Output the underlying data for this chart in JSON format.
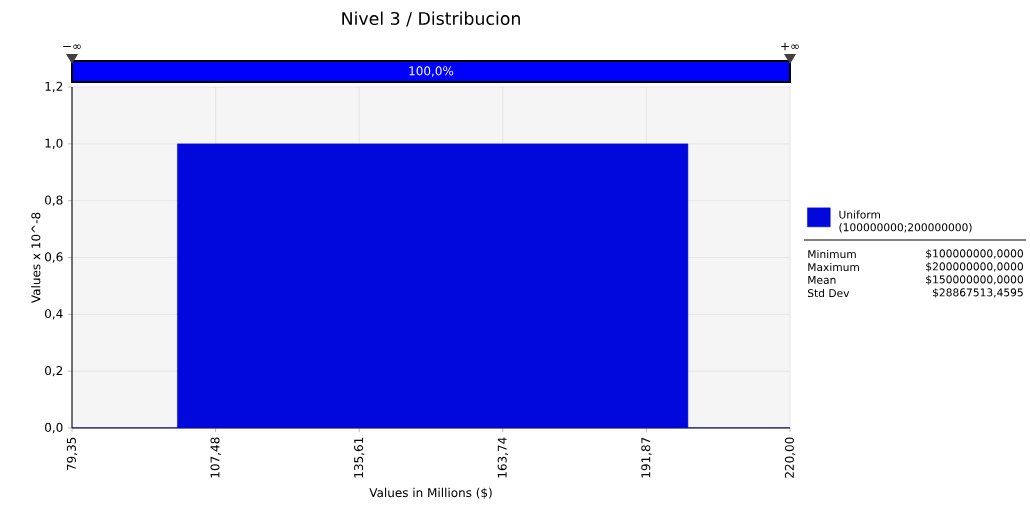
{
  "chart_data": {
    "type": "histogram",
    "title": "Nivel 3 / Distribucion",
    "xlabel": "Values in Millions ($)",
    "ylabel": "Values x 10^-8",
    "bins": [
      79.35,
      100,
      200,
      220
    ],
    "series": [
      {
        "name": "Uniform (100000000;200000000)",
        "color": "#0008dc",
        "values": [
          0,
          1,
          0
        ]
      }
    ],
    "xlim": [
      79.35,
      220
    ],
    "ylim": [
      0,
      1.2
    ],
    "xticks": [
      {
        "value": 79.35,
        "label": "79,35"
      },
      {
        "value": 107.48,
        "label": "107,48"
      },
      {
        "value": 135.61,
        "label": "135,61"
      },
      {
        "value": 163.74,
        "label": "163,74"
      },
      {
        "value": 191.87,
        "label": "191,87"
      },
      {
        "value": 220,
        "label": "220,00"
      }
    ],
    "yticks": [
      {
        "value": 0,
        "label": "0,0"
      },
      {
        "value": 0.2,
        "label": "0,2"
      },
      {
        "value": 0.4,
        "label": "0,4"
      },
      {
        "value": 0.6,
        "label": "0,6"
      },
      {
        "value": 0.8,
        "label": "0,8"
      },
      {
        "value": 1.0,
        "label": "1,0"
      },
      {
        "value": 1.2,
        "label": "1,2"
      }
    ],
    "grid": true,
    "legend": "right",
    "annotations": [
      "100,0%",
      "−∞",
      "+∞",
      "Minimum",
      "$100000000,0000",
      "Maximum",
      "$200000000,0000",
      "Mean",
      "$150000000,0000",
      "Std Dev",
      "$28867513,4595"
    ]
  }
}
